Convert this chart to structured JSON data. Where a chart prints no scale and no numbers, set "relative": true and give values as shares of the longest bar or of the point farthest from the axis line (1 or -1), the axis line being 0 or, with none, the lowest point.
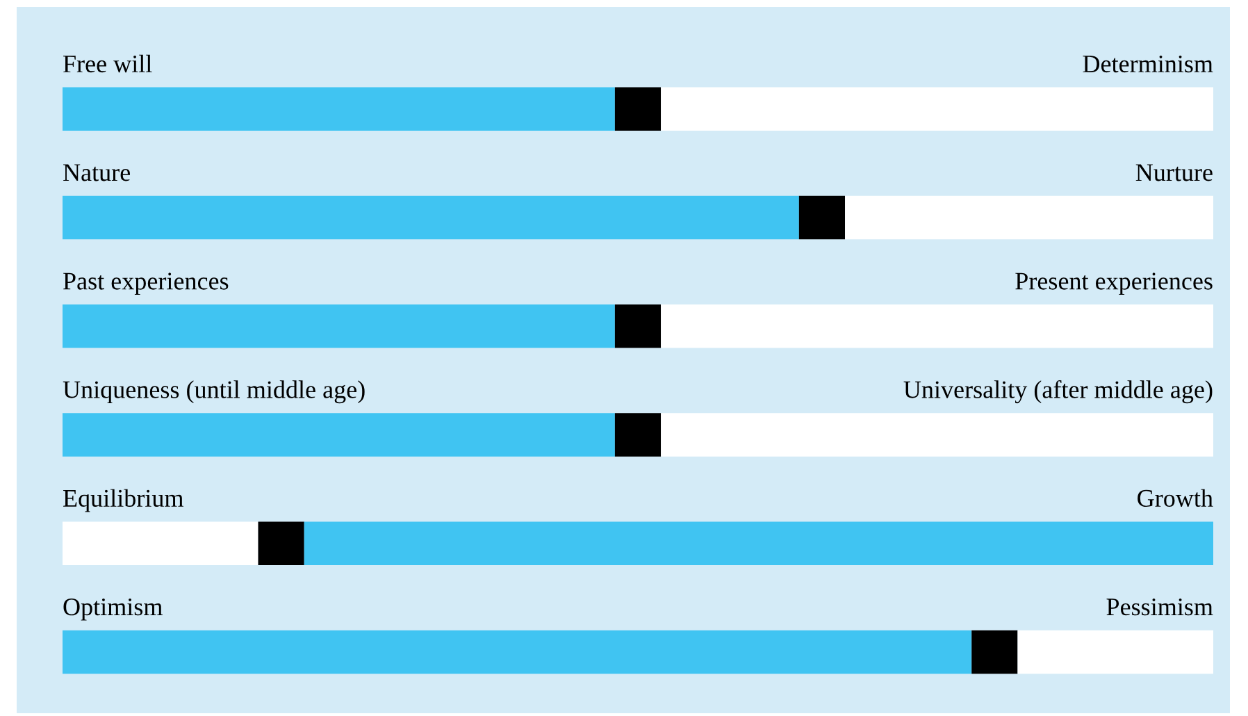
{
  "chart_data": {
    "type": "bar",
    "orientation": "horizontal",
    "stacked": true,
    "relative": true,
    "categories": [
      "Free will",
      "Nature",
      "Past experiences",
      "Uniqueness (until middle age)",
      "Equilibrium",
      "Optimism"
    ],
    "series": [
      {
        "colors": [
          "#40c4f2",
          "#40c4f2",
          "#40c4f2",
          "#40c4f2",
          "#ffffff",
          "#40c4f2"
        ],
        "values": [
          0.48,
          0.64,
          0.48,
          0.48,
          0.17,
          0.79
        ]
      },
      {
        "colors": [
          "#000000",
          "#000000",
          "#000000",
          "#000000",
          "#000000",
          "#000000"
        ],
        "values": [
          0.04,
          0.04,
          0.04,
          0.04,
          0.04,
          0.04
        ]
      },
      {
        "colors": [
          "#ffffff",
          "#ffffff",
          "#ffffff",
          "#ffffff",
          "#40c4f2",
          "#ffffff"
        ],
        "values": [
          0.48,
          0.32,
          0.48,
          0.48,
          0.79,
          0.17
        ]
      }
    ],
    "annotations": [
      "Determinism",
      "Nurture",
      "Present experiences",
      "Universality (after middle age)",
      "Growth",
      "Pessimism"
    ]
  }
}
